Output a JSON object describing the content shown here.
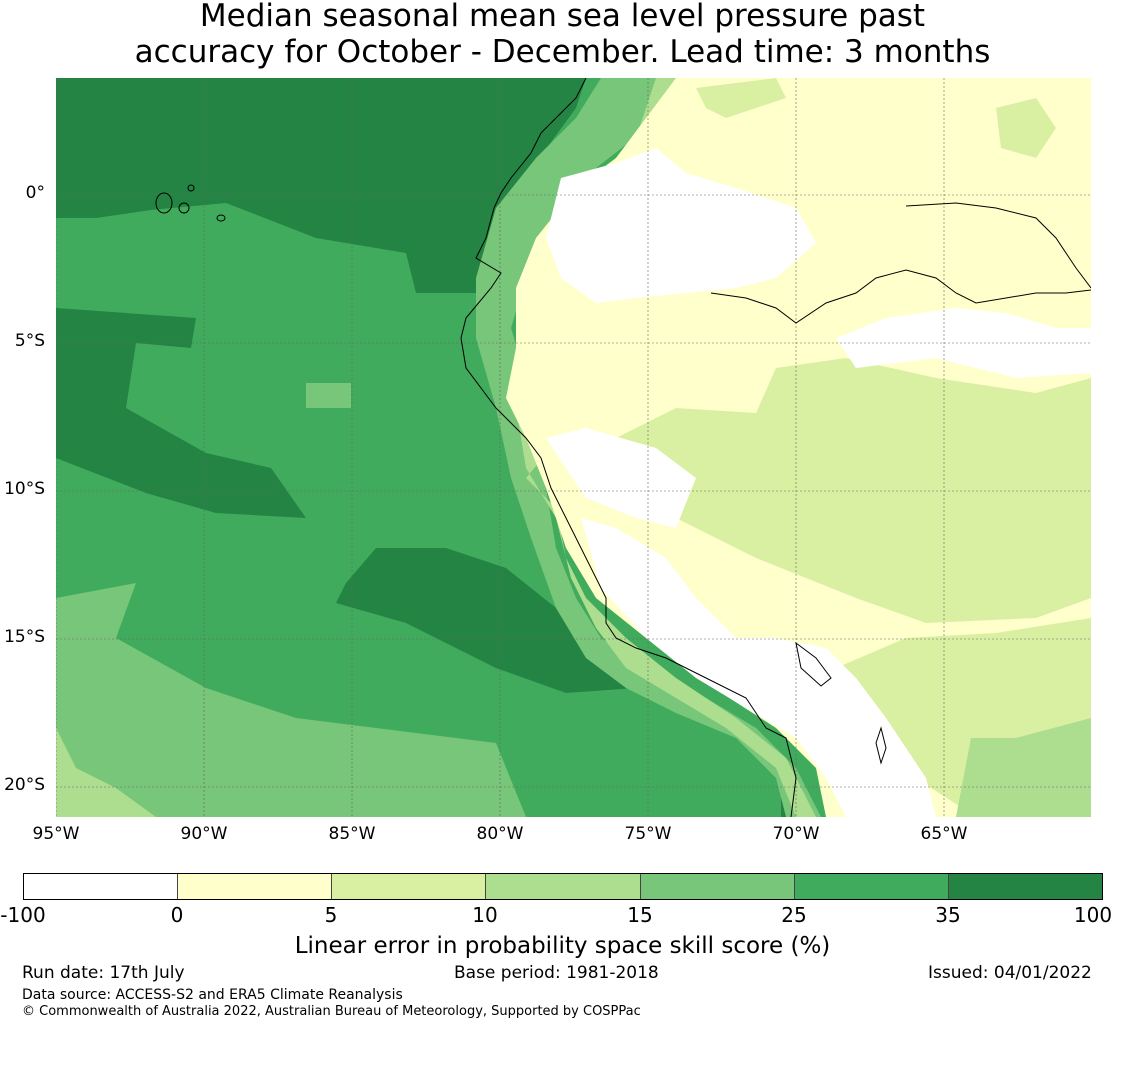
{
  "title": {
    "line1": "Median seasonal mean sea level pressure past",
    "line2": "accuracy for October - December. Lead time: 3 months"
  },
  "map": {
    "lon_range": [
      -95,
      -60
    ],
    "lat_range": [
      -21,
      4
    ],
    "y_ticks": [
      "0°",
      "5°S",
      "10°S",
      "15°S",
      "20°S"
    ],
    "x_ticks": [
      "95°W",
      "90°W",
      "85°W",
      "80°W",
      "75°W",
      "70°W",
      "65°W"
    ],
    "gridlines": true,
    "coastline_color": "#000000"
  },
  "colorbar": {
    "labels": [
      "-100",
      "0",
      "5",
      "10",
      "15",
      "25",
      "35",
      "100"
    ],
    "colors": [
      "#ffffff",
      "#ffffcc",
      "#d9f0a3",
      "#addd8e",
      "#78c679",
      "#41ab5d",
      "#238443"
    ],
    "title": "Linear error in probability space skill score (%)"
  },
  "footer": {
    "run_date": "Run date: 17th July",
    "base_period": "Base period: 1981-2018",
    "issued": "Issued: 04/01/2022",
    "data_source": "Data source: ACCESS-S2 and ERA5 Climate Reanalysis",
    "copyright": "© Commonwealth of Australia 2022, Australian Bureau of Meteorology, Supported by COSPPac"
  }
}
